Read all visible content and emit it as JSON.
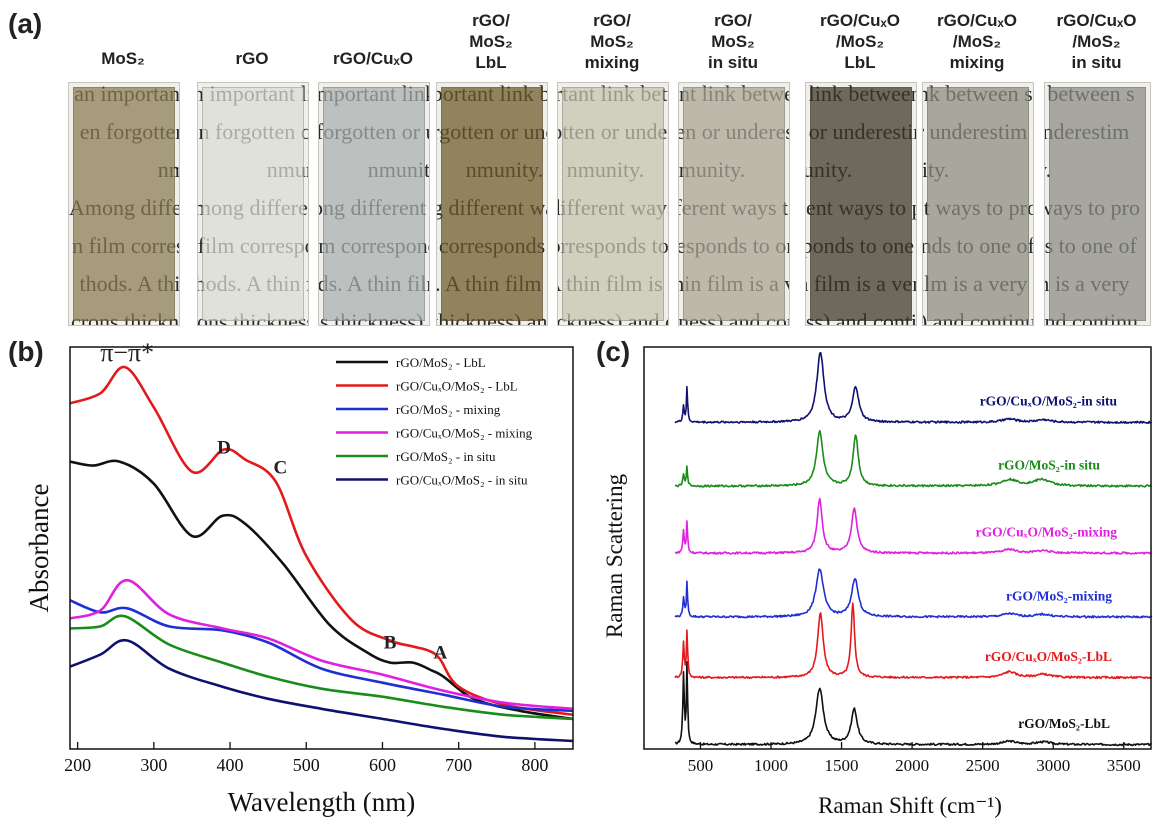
{
  "panels": {
    "a": "(a)",
    "b": "(b)",
    "c": "(c)"
  },
  "samples": [
    {
      "label": "MoS₂",
      "tint": "#8a7c52"
    },
    {
      "label": "rGO",
      "tint": "#dcdcd6"
    },
    {
      "label": "rGO/CuₓO",
      "tint": "#a8aeb0"
    },
    {
      "label": "rGO/\nMoS₂\nLbL",
      "tint": "#6d5a2a"
    },
    {
      "label": "rGO/\nMoS₂\nmixing",
      "tint": "#c6c4ae"
    },
    {
      "label": "rGO/\nMoS₂\nin situ",
      "tint": "#aaa593"
    },
    {
      "label": "rGO/CuₓO\n/MoS₂\nLbL",
      "tint": "#3c3628"
    },
    {
      "label": "rGO/CuₓO\n/MoS₂\nmixing",
      "tint": "#8e8c7e"
    },
    {
      "label": "rGO/CuₓO\n/MoS₂\nin situ",
      "tint": "#8c8b85"
    }
  ],
  "chart_data": [
    {
      "type": "line",
      "panel": "b",
      "xlabel": "Wavelength (nm)",
      "ylabel": "Absorbance",
      "xlim": [
        190,
        850
      ],
      "xticks": [
        200,
        300,
        400,
        500,
        600,
        700,
        800
      ],
      "ylim": [
        0,
        1.0
      ],
      "annotations": [
        {
          "text": "π−π*",
          "x": 265,
          "y": 0.965
        },
        {
          "text": "D",
          "x": 392,
          "y": 0.735
        },
        {
          "text": "C",
          "x": 466,
          "y": 0.685
        },
        {
          "text": "B",
          "x": 610,
          "y": 0.25
        },
        {
          "text": "A",
          "x": 676,
          "y": 0.225
        }
      ],
      "legend_position": "top-right",
      "series": [
        {
          "name": "rGO/MoS₂ - LbL",
          "color": "#111111",
          "points": [
            [
              190,
              0.715
            ],
            [
              220,
              0.705
            ],
            [
              255,
              0.715
            ],
            [
              300,
              0.66
            ],
            [
              350,
              0.53
            ],
            [
              390,
              0.58
            ],
            [
              420,
              0.56
            ],
            [
              470,
              0.46
            ],
            [
              530,
              0.31
            ],
            [
              580,
              0.24
            ],
            [
              610,
              0.215
            ],
            [
              640,
              0.215
            ],
            [
              665,
              0.195
            ],
            [
              680,
              0.18
            ],
            [
              720,
              0.125
            ],
            [
              780,
              0.095
            ],
            [
              850,
              0.075
            ]
          ]
        },
        {
          "name": "rGO/CuₓO/MoS₂ - LbL",
          "color": "#e31a1c",
          "points": [
            [
              190,
              0.86
            ],
            [
              230,
              0.885
            ],
            [
              262,
              0.95
            ],
            [
              300,
              0.85
            ],
            [
              350,
              0.69
            ],
            [
              392,
              0.745
            ],
            [
              420,
              0.72
            ],
            [
              460,
              0.665
            ],
            [
              500,
              0.48
            ],
            [
              560,
              0.32
            ],
            [
              610,
              0.27
            ],
            [
              640,
              0.255
            ],
            [
              660,
              0.245
            ],
            [
              675,
              0.225
            ],
            [
              700,
              0.155
            ],
            [
              760,
              0.11
            ],
            [
              850,
              0.085
            ]
          ]
        },
        {
          "name": "rGO/MoS₂ - mixing",
          "color": "#1f2fd1",
          "points": [
            [
              190,
              0.37
            ],
            [
              230,
              0.34
            ],
            [
              265,
              0.35
            ],
            [
              320,
              0.305
            ],
            [
              390,
              0.295
            ],
            [
              450,
              0.265
            ],
            [
              520,
              0.2
            ],
            [
              600,
              0.165
            ],
            [
              680,
              0.135
            ],
            [
              760,
              0.105
            ],
            [
              850,
              0.095
            ]
          ]
        },
        {
          "name": "rGO/CuₓO/MoS₂ - mixing",
          "color": "#e020e0",
          "points": [
            [
              190,
              0.325
            ],
            [
              230,
              0.345
            ],
            [
              265,
              0.42
            ],
            [
              320,
              0.335
            ],
            [
              390,
              0.3
            ],
            [
              450,
              0.275
            ],
            [
              520,
              0.22
            ],
            [
              600,
              0.185
            ],
            [
              680,
              0.145
            ],
            [
              760,
              0.115
            ],
            [
              850,
              0.1
            ]
          ]
        },
        {
          "name": "rGO/MoS₂ - in situ",
          "color": "#198c19",
          "points": [
            [
              190,
              0.3
            ],
            [
              230,
              0.305
            ],
            [
              262,
              0.33
            ],
            [
              320,
              0.26
            ],
            [
              390,
              0.215
            ],
            [
              450,
              0.18
            ],
            [
              520,
              0.15
            ],
            [
              600,
              0.13
            ],
            [
              680,
              0.105
            ],
            [
              760,
              0.085
            ],
            [
              850,
              0.075
            ]
          ]
        },
        {
          "name": "rGO/CuₓO/MoS₂ - in situ",
          "color": "#101070",
          "points": [
            [
              190,
              0.205
            ],
            [
              230,
              0.235
            ],
            [
              265,
              0.27
            ],
            [
              320,
              0.2
            ],
            [
              390,
              0.155
            ],
            [
              450,
              0.125
            ],
            [
              520,
              0.1
            ],
            [
              600,
              0.075
            ],
            [
              680,
              0.05
            ],
            [
              760,
              0.03
            ],
            [
              850,
              0.02
            ]
          ]
        }
      ]
    },
    {
      "type": "line",
      "panel": "c",
      "xlabel": "Raman Shift (cm⁻¹)",
      "ylabel": "Raman Scattering",
      "xlim": [
        100,
        3700
      ],
      "xticks": [
        500,
        1000,
        1500,
        2000,
        2500,
        3000,
        3500
      ],
      "ylim": [
        0,
        6.3
      ],
      "series": [
        {
          "name": "rGO/MoS₂-LbL",
          "color": "#111111",
          "offset": 0.0,
          "peaks": [
            [
              380,
              1.1,
              6
            ],
            [
              405,
              1.28,
              5
            ],
            [
              1345,
              0.88,
              32
            ],
            [
              1590,
              0.55,
              26
            ],
            [
              2690,
              0.05,
              60
            ],
            [
              2930,
              0.04,
              60
            ]
          ]
        },
        {
          "name": "rGO/CuₓO/MoS₂-LbL",
          "color": "#e31a1c",
          "offset": 1.05,
          "peaks": [
            [
              380,
              0.55,
              6
            ],
            [
              405,
              0.75,
              5
            ],
            [
              1350,
              1.0,
              24
            ],
            [
              1580,
              1.15,
              15
            ],
            [
              2690,
              0.09,
              55
            ],
            [
              2930,
              0.05,
              60
            ]
          ]
        },
        {
          "name": "rGO/MoS₂-mixing",
          "color": "#1f2fd1",
          "offset": 2.0,
          "peaks": [
            [
              380,
              0.3,
              6
            ],
            [
              405,
              0.55,
              5
            ],
            [
              1345,
              0.75,
              32
            ],
            [
              1595,
              0.6,
              28
            ],
            [
              2690,
              0.05,
              60
            ],
            [
              2930,
              0.04,
              60
            ]
          ]
        },
        {
          "name": "rGO/CuₓO/MoS₂-mixing",
          "color": "#e020e0",
          "offset": 3.0,
          "peaks": [
            [
              380,
              0.35,
              6
            ],
            [
              405,
              0.5,
              5
            ],
            [
              1345,
              0.85,
              22
            ],
            [
              1590,
              0.7,
              24
            ],
            [
              2690,
              0.06,
              55
            ],
            [
              2930,
              0.04,
              60
            ]
          ]
        },
        {
          "name": "rGO/MoS₂-in situ",
          "color": "#198c19",
          "offset": 4.05,
          "peaks": [
            [
              380,
              0.18,
              6
            ],
            [
              405,
              0.32,
              5
            ],
            [
              1345,
              0.85,
              28
            ],
            [
              1600,
              0.8,
              22
            ],
            [
              2690,
              0.1,
              70
            ],
            [
              2920,
              0.1,
              70
            ]
          ]
        },
        {
          "name": "rGO/CuₓO/MoS₂-in situ",
          "color": "#101070",
          "offset": 5.05,
          "peaks": [
            [
              380,
              0.25,
              6
            ],
            [
              405,
              0.55,
              5
            ],
            [
              1350,
              1.1,
              30
            ],
            [
              1600,
              0.55,
              26
            ],
            [
              2690,
              0.05,
              60
            ],
            [
              2930,
              0.04,
              60
            ]
          ]
        }
      ]
    }
  ]
}
